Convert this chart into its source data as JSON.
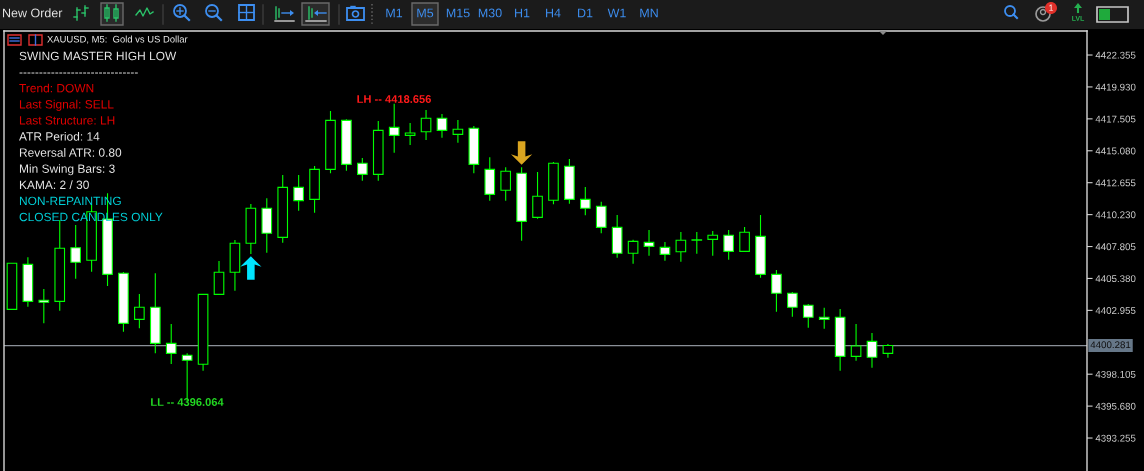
{
  "chart_data": {
    "type": "candlestick",
    "title": "XAUUSD, M5:  Gold vs US Dollar",
    "categories": [
      null,
      null,
      null,
      null,
      null,
      null,
      null,
      null,
      null,
      null,
      null,
      null,
      null,
      null,
      null,
      null,
      null,
      null,
      null,
      null,
      null,
      null,
      null,
      null,
      null,
      null,
      null,
      null,
      null,
      null,
      null,
      null,
      null,
      null,
      null,
      null,
      null,
      null,
      null,
      null,
      null,
      null,
      null,
      null,
      null,
      null,
      null,
      null,
      null,
      null,
      null,
      null,
      null,
      null,
      null,
      null,
      null,
      null,
      null,
      null,
      null,
      null,
      null,
      null,
      null,
      null,
      null,
      null
    ],
    "ohlc": [
      [
        4403.03,
        4406.53,
        4403.03,
        4406.53
      ],
      [
        4406.45,
        4406.99,
        4403.23,
        4403.64
      ],
      [
        4403.72,
        4404.58,
        4401.97,
        4403.57
      ],
      [
        4403.64,
        4409.82,
        4402.93,
        4407.67
      ],
      [
        4407.71,
        4409.44,
        4405.36,
        4406.61
      ],
      [
        4406.76,
        4410.96,
        4405.89,
        4410.45
      ],
      [
        4409.9,
        4411.85,
        4404.8,
        4405.69
      ],
      [
        4405.77,
        4405.87,
        4401.33,
        4401.97
      ],
      [
        4402.27,
        4404.2,
        4401.59,
        4403.19
      ],
      [
        4403.19,
        4405.77,
        4399.69,
        4400.45
      ],
      [
        4400.45,
        4401.92,
        4398.88,
        4399.69
      ],
      [
        4399.54,
        4399.69,
        4396.064,
        4399.16
      ],
      [
        4398.86,
        4404.17,
        4398.37,
        4404.17
      ],
      [
        4404.17,
        4406.7,
        4404.17,
        4405.85
      ],
      [
        4405.85,
        4408.3,
        4404.45,
        4408.05
      ],
      [
        4408.05,
        4411.03,
        4407.24,
        4410.71
      ],
      [
        4410.71,
        4411.47,
        4407.33,
        4408.81
      ],
      [
        4408.5,
        4413.24,
        4408.09,
        4412.3
      ],
      [
        4412.3,
        4413.24,
        4410.53,
        4411.29
      ],
      [
        4411.39,
        4413.92,
        4410.37,
        4413.67
      ],
      [
        4413.67,
        4418.1,
        4413.37,
        4417.39
      ],
      [
        4417.39,
        4417.47,
        4413.57,
        4414.05
      ],
      [
        4414.13,
        4414.53,
        4412.81,
        4413.29
      ],
      [
        4413.29,
        4417.34,
        4412.81,
        4416.63
      ],
      [
        4416.86,
        4418.656,
        4414.93,
        4416.25
      ],
      [
        4416.25,
        4417.19,
        4415.52,
        4416.43
      ],
      [
        4416.53,
        4418.18,
        4415.9,
        4417.55
      ],
      [
        4417.55,
        4417.87,
        4416.07,
        4416.63
      ],
      [
        4416.33,
        4417.42,
        4415.69,
        4416.71
      ],
      [
        4416.79,
        4416.96,
        4413.37,
        4414.05
      ],
      [
        4413.67,
        4414.58,
        4411.29,
        4411.77
      ],
      [
        4412.08,
        4413.82,
        4411.29,
        4413.52
      ],
      [
        4413.37,
        4413.82,
        4408.25,
        4409.72
      ],
      [
        4410.02,
        4413.47,
        4409.92,
        4411.62
      ],
      [
        4411.32,
        4414.23,
        4411.01,
        4414.13
      ],
      [
        4413.9,
        4414.45,
        4411.06,
        4411.39
      ],
      [
        4411.39,
        4412.33,
        4410.18,
        4410.71
      ],
      [
        4410.86,
        4411.2,
        4408.81,
        4409.26
      ],
      [
        4409.26,
        4410.2,
        4406.95,
        4407.29
      ],
      [
        4407.29,
        4408.32,
        4406.5,
        4408.2
      ],
      [
        4408.12,
        4409.06,
        4407.11,
        4407.82
      ],
      [
        4407.74,
        4408.15,
        4406.73,
        4407.21
      ],
      [
        4407.41,
        4408.91,
        4406.65,
        4408.28
      ],
      [
        4408.28,
        4408.91,
        4407.26,
        4408.32
      ],
      [
        4408.35,
        4408.98,
        4407.11,
        4408.66
      ],
      [
        4408.66,
        4409.06,
        4406.8,
        4407.44
      ],
      [
        4407.44,
        4409.29,
        4407.44,
        4408.89
      ],
      [
        4408.58,
        4410.2,
        4405.44,
        4405.69
      ],
      [
        4405.69,
        4406.02,
        4402.85,
        4404.25
      ],
      [
        4404.25,
        4404.35,
        4402.47,
        4403.19
      ],
      [
        4403.34,
        4403.44,
        4401.64,
        4402.43
      ],
      [
        4402.43,
        4403.16,
        4401.56,
        4402.27
      ],
      [
        4402.43,
        4403.06,
        4398.37,
        4399.46
      ],
      [
        4399.46,
        4401.92,
        4399.13,
        4400.25
      ],
      [
        4400.6,
        4401.23,
        4398.6,
        4399.39
      ],
      [
        4399.69,
        4400.4,
        4399.36,
        4400.281
      ],
      null,
      null,
      null,
      null,
      null,
      null,
      null,
      null,
      null,
      null,
      null,
      null
    ],
    "series": [
      {
        "type": "scatter",
        "color": "#00e5ff",
        "values": [
          null,
          null,
          null,
          null,
          null,
          null,
          null,
          null,
          null,
          null,
          null,
          null,
          null,
          null,
          null,
          4406.17,
          null,
          null,
          null,
          null,
          null,
          null,
          null,
          null,
          null,
          null,
          null,
          null,
          null,
          null,
          null,
          null,
          null,
          null,
          null,
          null,
          null,
          null,
          null,
          null,
          null,
          null,
          null,
          null,
          null,
          null,
          null,
          null,
          null,
          null,
          null,
          null,
          null,
          null,
          null,
          null,
          null,
          null,
          null,
          null,
          null,
          null,
          null,
          null,
          null,
          null,
          null,
          null
        ]
      },
      {
        "type": "scatter",
        "color": "#daa520",
        "values": [
          null,
          null,
          null,
          null,
          null,
          null,
          null,
          null,
          null,
          null,
          null,
          null,
          null,
          null,
          null,
          null,
          null,
          null,
          null,
          null,
          null,
          null,
          null,
          null,
          null,
          null,
          null,
          null,
          null,
          null,
          null,
          null,
          4414.91,
          null,
          null,
          null,
          null,
          null,
          null,
          null,
          null,
          null,
          null,
          null,
          null,
          null,
          null,
          null,
          null,
          null,
          null,
          null,
          null,
          null,
          null,
          null,
          null,
          null,
          null,
          null,
          null,
          null,
          null,
          null,
          null,
          null,
          null,
          null
        ]
      }
    ],
    "ylim": [
      4390.75,
      4424.18
    ],
    "yticks": [
      4422.355,
      {
        "value": 4419.93,
        "label": "4419.930"
      },
      4417.505,
      {
        "value": 4415.08,
        "label": "4415.080"
      },
      4412.655,
      {
        "value": 4410.23,
        "label": "4410.230"
      },
      4407.805,
      {
        "value": 4405.38,
        "label": "4405.380"
      },
      4402.955,
      4398.105,
      {
        "value": 4395.68,
        "label": "4395.680"
      },
      4393.255
    ],
    "tick_labels": "y",
    "ref_lines": [
      {
        "axis": "y",
        "value": 4400.281,
        "label": "4400.281",
        "color": "#8a9098"
      }
    ],
    "annotations": [
      "New Order",
      "M1",
      "M5",
      "M15",
      "M30",
      "H1",
      "H4",
      "D1",
      "W1",
      "MN",
      "1",
      "LVL",
      "SWING MASTER HIGH LOW",
      "------------------------------",
      "Trend: DOWN",
      "Last Signal: SELL",
      "Last Structure: LH",
      "ATR Period: 14",
      "Reversal ATR: 0.80",
      "Min Swing Bars: 3",
      "KAMA: 2 / 30",
      "NON-REPAINTING",
      "CLOSED CANDLES ONLY",
      "LH -- 4418.656",
      "LL -- 4396.064"
    ]
  }
}
